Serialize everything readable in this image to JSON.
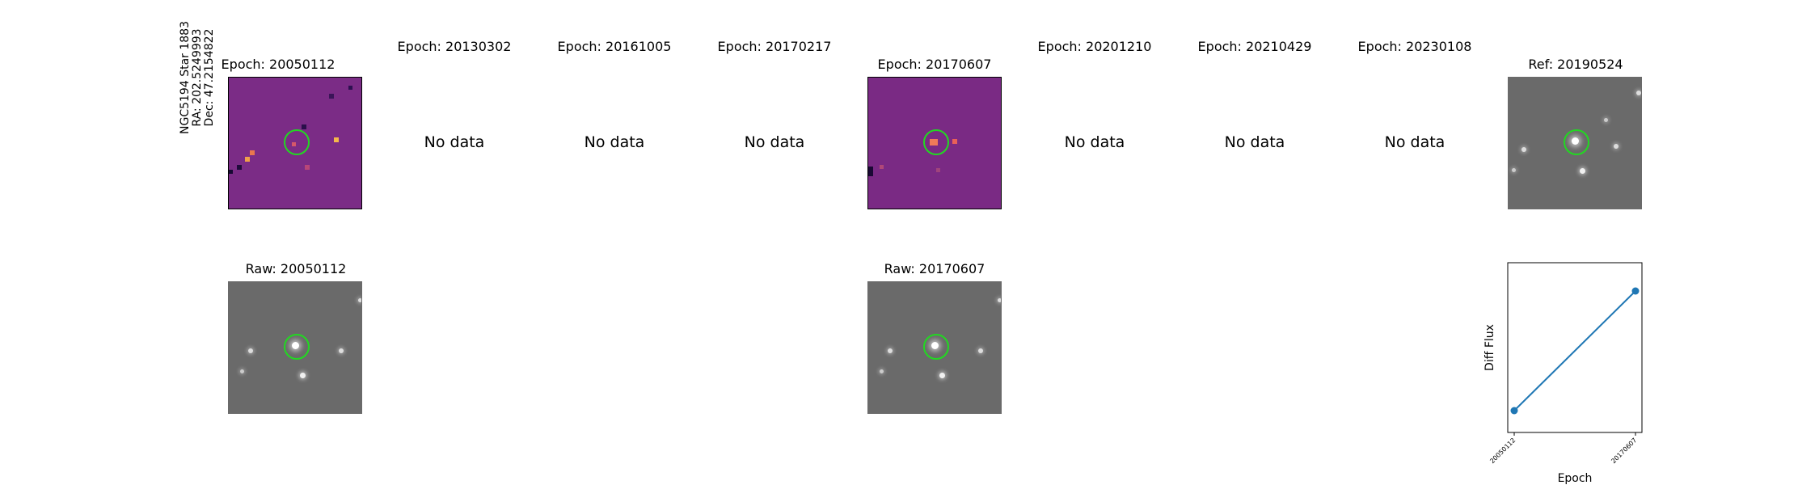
{
  "object_label": {
    "line1": "NGC5194 Star 1883",
    "line2": "RA: 202.5249993",
    "line3": "Dec: 47.2154822"
  },
  "epochs": [
    {
      "title": "Epoch: 20050112",
      "has_data": true
    },
    {
      "title": "Epoch: 20130302",
      "has_data": false,
      "message": "No data"
    },
    {
      "title": "Epoch: 20161005",
      "has_data": false,
      "message": "No data"
    },
    {
      "title": "Epoch: 20170217",
      "has_data": false,
      "message": "No data"
    },
    {
      "title": "Epoch: 20170607",
      "has_data": true
    },
    {
      "title": "Epoch: 20201210",
      "has_data": false,
      "message": "No data"
    },
    {
      "title": "Epoch: 20210429",
      "has_data": false,
      "message": "No data"
    },
    {
      "title": "Epoch: 20230108",
      "has_data": false,
      "message": "No data"
    }
  ],
  "reference": {
    "title": "Ref: 20190524"
  },
  "raw": [
    {
      "title": "Raw: 20050112"
    },
    {
      "title": "Raw: 20170607"
    }
  ],
  "colors": {
    "diff_cmap": "#7b2c86",
    "raw_bg": "#6a6a6a",
    "ring": "#22d822",
    "series": "#1f77b4"
  },
  "chart_data": {
    "type": "line",
    "title": "",
    "xlabel": "Epoch",
    "ylabel": "Diff Flux",
    "x": [
      "20050112",
      "20170607"
    ],
    "series": [
      {
        "values": [
          0.0,
          1.0
        ]
      }
    ],
    "yticks_shown": false,
    "grid": false
  }
}
